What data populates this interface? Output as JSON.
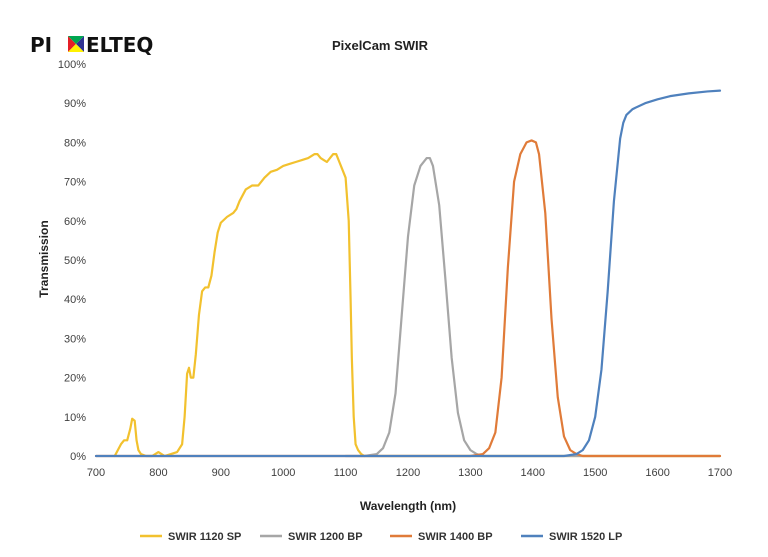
{
  "logo": {
    "left": "PI",
    "right": "ELTEQ",
    "mark_colors": [
      "#e51f26",
      "#2e3192",
      "#00a651",
      "#fff200"
    ]
  },
  "chart_data": {
    "type": "line",
    "title": "PixelCam SWIR",
    "xlabel": "Wavelength (nm)",
    "ylabel": "Transmission",
    "xlim": [
      700,
      1700
    ],
    "ylim": [
      0,
      100
    ],
    "x_ticks": [
      700,
      800,
      900,
      1000,
      1100,
      1200,
      1300,
      1400,
      1500,
      1600,
      1700
    ],
    "x_tick_labels": [
      "700",
      "800",
      "900",
      "1000",
      "1100",
      "1200",
      "1300",
      "1400",
      "1500",
      "1600",
      "1700"
    ],
    "y_ticks": [
      0,
      10,
      20,
      30,
      40,
      50,
      60,
      70,
      80,
      90,
      100
    ],
    "y_tick_labels": [
      "0%",
      "10%",
      "20%",
      "30%",
      "40%",
      "50%",
      "60%",
      "70%",
      "80%",
      "90%",
      "100%"
    ],
    "legend_position": "bottom",
    "series": [
      {
        "name": "SWIR 1120 SP",
        "color": "#f2c12e",
        "x": [
          730,
          740,
          745,
          750,
          755,
          758,
          762,
          765,
          768,
          772,
          780,
          790,
          800,
          805,
          810,
          820,
          830,
          838,
          842,
          846,
          849,
          852,
          856,
          860,
          865,
          870,
          875,
          880,
          885,
          890,
          895,
          900,
          910,
          920,
          925,
          930,
          940,
          950,
          960,
          970,
          980,
          990,
          1000,
          1010,
          1020,
          1030,
          1040,
          1050,
          1055,
          1060,
          1065,
          1070,
          1075,
          1080,
          1085,
          1090,
          1095,
          1100,
          1105,
          1108,
          1110,
          1113,
          1116,
          1120,
          1125,
          1130,
          1135,
          1140,
          1150,
          1160,
          1200,
          1300,
          1400,
          1500,
          1600,
          1700
        ],
        "y": [
          0,
          3,
          4,
          4,
          7,
          9.5,
          9,
          4,
          1.5,
          0.5,
          0,
          0,
          1,
          0.5,
          0,
          0.5,
          1,
          3,
          10,
          21,
          22.5,
          20,
          20,
          26,
          36,
          42,
          43,
          43,
          46,
          52,
          57,
          59.5,
          61,
          62,
          63,
          65,
          68,
          69,
          69,
          71,
          72.5,
          73,
          74,
          74.5,
          75,
          75.5,
          76,
          77,
          77,
          76,
          75.5,
          75,
          76,
          77,
          77,
          75,
          73,
          71,
          60,
          40,
          25,
          10,
          3,
          1.5,
          0.5,
          0,
          0,
          0,
          0,
          0,
          0,
          0,
          0,
          0,
          0,
          0
        ]
      },
      {
        "name": "SWIR 1200 BP",
        "color": "#a6a6a6",
        "x": [
          1100,
          1130,
          1150,
          1160,
          1170,
          1180,
          1190,
          1200,
          1210,
          1220,
          1230,
          1235,
          1240,
          1250,
          1260,
          1270,
          1280,
          1290,
          1300,
          1310,
          1320,
          1340,
          1400,
          1500,
          1600,
          1700
        ],
        "y": [
          0,
          0,
          0.5,
          2,
          6,
          16,
          36,
          56,
          69,
          74,
          76,
          76,
          74,
          64,
          45,
          25,
          11,
          4,
          1.5,
          0.5,
          0,
          0,
          0,
          0,
          0,
          0
        ]
      },
      {
        "name": "SWIR 1400 BP",
        "color": "#e07b39",
        "x": [
          700,
          1300,
          1320,
          1330,
          1340,
          1350,
          1360,
          1370,
          1380,
          1390,
          1398,
          1405,
          1410,
          1420,
          1430,
          1440,
          1450,
          1460,
          1470,
          1480,
          1500,
          1550,
          1600,
          1700
        ],
        "y": [
          0,
          0,
          0.5,
          2,
          6,
          20,
          48,
          70,
          77,
          80,
          80.5,
          80,
          77,
          62,
          35,
          15,
          5,
          1.5,
          0.5,
          0,
          0,
          0,
          0,
          0
        ]
      },
      {
        "name": "SWIR 1520 LP",
        "color": "#4f81bd",
        "x": [
          700,
          1450,
          1470,
          1480,
          1490,
          1500,
          1510,
          1520,
          1530,
          1540,
          1545,
          1550,
          1560,
          1580,
          1600,
          1620,
          1650,
          1680,
          1700
        ],
        "y": [
          0,
          0,
          0.5,
          1.5,
          4,
          10,
          22,
          42,
          65,
          81,
          85,
          87,
          88.5,
          90,
          91,
          91.8,
          92.5,
          93,
          93.2
        ]
      }
    ]
  }
}
